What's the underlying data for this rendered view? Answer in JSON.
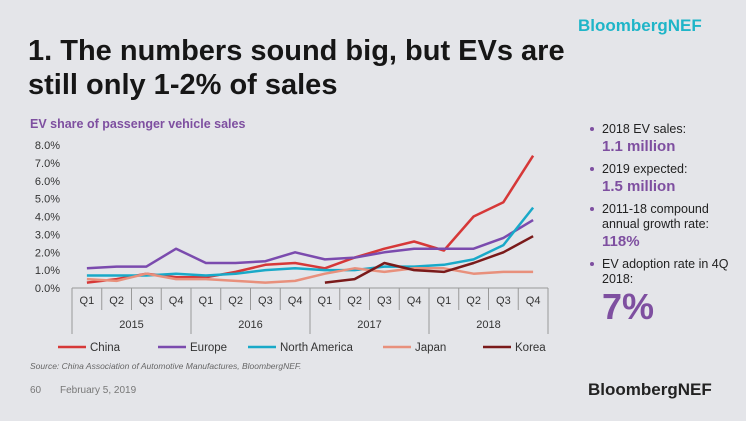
{
  "header": {
    "brand": "BloombergNEF",
    "title": "1. The numbers sound big, but EVs are still only 1-2% of sales"
  },
  "sidebar": {
    "bullets": [
      {
        "label": "2018 EV sales:",
        "value": "1.1 million"
      },
      {
        "label": "2019 expected:",
        "value": "1.5 million"
      },
      {
        "label": "2011-18 compound annual growth rate:",
        "value": "118%"
      },
      {
        "label": "EV adoption rate in 4Q 2018:",
        "value": "7%"
      }
    ]
  },
  "footer": {
    "source": "Source: China Association of Automotive Manufactures, BloombergNEF.",
    "slide_number": "60",
    "date": "February 5, 2019",
    "brand": "BloombergNEF"
  },
  "chart_data": {
    "type": "line",
    "title": "EV share of passenger vehicle sales",
    "xlabel": "",
    "ylabel": "",
    "categories": [
      "Q1",
      "Q2",
      "Q3",
      "Q4",
      "Q1",
      "Q2",
      "Q3",
      "Q4",
      "Q1",
      "Q2",
      "Q3",
      "Q4",
      "Q1",
      "Q2",
      "Q3",
      "Q4"
    ],
    "year_groups": [
      {
        "label": "2015",
        "start": 0,
        "end": 3
      },
      {
        "label": "2016",
        "start": 4,
        "end": 7
      },
      {
        "label": "2017",
        "start": 8,
        "end": 11
      },
      {
        "label": "2018",
        "start": 12,
        "end": 15
      }
    ],
    "y_ticks": [
      "0.0%",
      "1.0%",
      "2.0%",
      "3.0%",
      "4.0%",
      "5.0%",
      "6.0%",
      "7.0%",
      "8.0%"
    ],
    "ylim": [
      0,
      8
    ],
    "grid": false,
    "legend_position": "bottom",
    "series": [
      {
        "name": "China",
        "color": "#d63838",
        "values": [
          0.3,
          0.5,
          0.8,
          0.6,
          0.6,
          0.9,
          1.3,
          1.4,
          1.1,
          1.7,
          2.2,
          2.6,
          2.1,
          4.0,
          4.8,
          7.4
        ]
      },
      {
        "name": "Europe",
        "color": "#7b4bae",
        "values": [
          1.1,
          1.2,
          1.2,
          2.2,
          1.4,
          1.4,
          1.5,
          2.0,
          1.6,
          1.7,
          2.0,
          2.2,
          2.2,
          2.2,
          2.8,
          3.8
        ]
      },
      {
        "name": "North America",
        "color": "#19a9c8",
        "values": [
          0.7,
          0.7,
          0.7,
          0.8,
          0.7,
          0.8,
          1.0,
          1.1,
          1.0,
          1.0,
          1.2,
          1.2,
          1.3,
          1.6,
          2.4,
          4.5
        ]
      },
      {
        "name": "Japan",
        "color": "#e8907c",
        "values": [
          0.5,
          0.4,
          0.8,
          0.5,
          0.5,
          0.4,
          0.3,
          0.4,
          0.8,
          1.1,
          0.9,
          1.1,
          1.1,
          0.8,
          0.9,
          0.9
        ]
      },
      {
        "name": "Korea",
        "color": "#7a1a1a",
        "values": [
          null,
          null,
          null,
          null,
          null,
          null,
          null,
          null,
          0.3,
          0.5,
          1.4,
          1.0,
          0.9,
          1.4,
          2.0,
          2.9
        ]
      }
    ]
  }
}
